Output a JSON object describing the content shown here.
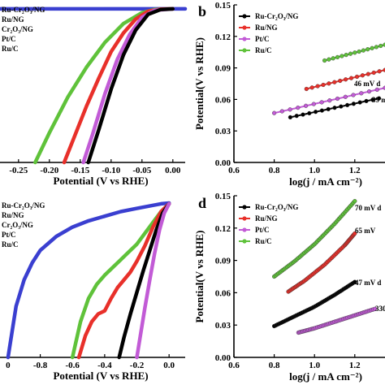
{
  "colors": {
    "ru_cr2o3_ng": "#000000",
    "ru_ng": "#e8302a",
    "cr2o3_ng": "#3a3fd0",
    "pt_c": "#c25bd6",
    "ru_c": "#5fc23a"
  },
  "chart_data": [
    {
      "panel": "a",
      "type": "line",
      "xlabel": "Potential (V vs RHE)",
      "ylabel": "",
      "xlim": [
        -0.28,
        0.02
      ],
      "xticks": [
        "-0.25",
        "-0.20",
        "-0.15",
        "-0.10",
        "-0.05",
        "0.00"
      ],
      "legend": [
        "Ru-Cr₂O₃/NG",
        "Ru/NG",
        "Cr₂O₃/NG",
        "Pt/C",
        "Ru/C"
      ],
      "legend_position": "top-left",
      "series": [
        {
          "name": "Cr₂O₃/NG",
          "color": "#3a3fd0",
          "x": [
            -0.28,
            -0.25,
            -0.2,
            -0.15,
            -0.1,
            -0.05,
            0.0,
            0.02
          ],
          "y": [
            0.985,
            0.985,
            0.985,
            0.985,
            0.985,
            0.985,
            0.985,
            0.985
          ]
        },
        {
          "name": "Ru/C",
          "color": "#5fc23a",
          "x": [
            -0.223,
            -0.2,
            -0.17,
            -0.14,
            -0.11,
            -0.08,
            -0.05,
            -0.03,
            0.0
          ],
          "y": [
            0.0,
            0.19,
            0.42,
            0.61,
            0.77,
            0.89,
            0.96,
            0.98,
            0.985
          ]
        },
        {
          "name": "Ru/NG",
          "color": "#e8302a",
          "x": [
            -0.176,
            -0.16,
            -0.14,
            -0.12,
            -0.1,
            -0.08,
            -0.06,
            -0.04,
            -0.02,
            0.0
          ],
          "y": [
            0.0,
            0.16,
            0.36,
            0.54,
            0.71,
            0.83,
            0.92,
            0.97,
            0.983,
            0.985
          ]
        },
        {
          "name": "Pt/C",
          "color": "#c25bd6",
          "x": [
            -0.145,
            -0.13,
            -0.11,
            -0.09,
            -0.07,
            -0.05,
            -0.03,
            0.0
          ],
          "y": [
            0.0,
            0.18,
            0.44,
            0.66,
            0.82,
            0.93,
            0.975,
            0.985
          ]
        },
        {
          "name": "Ru-Cr₂O₃/NG",
          "color": "#000000",
          "x": [
            -0.137,
            -0.12,
            -0.1,
            -0.08,
            -0.06,
            -0.04,
            -0.02,
            0.0
          ],
          "y": [
            0.0,
            0.21,
            0.47,
            0.69,
            0.85,
            0.95,
            0.98,
            0.985
          ]
        }
      ]
    },
    {
      "panel": "b",
      "type": "line",
      "xlabel": "log(j / mA cm⁻²)",
      "ylabel": "Potential(V vs RHE)",
      "xlim": [
        0.6,
        1.35
      ],
      "ylim": [
        0.0,
        0.15
      ],
      "xticks": [
        "0.6",
        "0.8",
        "1.0",
        "1.2"
      ],
      "yticks": [
        "0.00",
        "0.03",
        "0.06",
        "0.09",
        "0.12",
        "0.15"
      ],
      "legend": [
        "Ru-Cr₂O₃/NG",
        "Ru/NG",
        "Pt/C",
        "Ru/C"
      ],
      "legend_position": "top-left",
      "annotations": [
        "46 mV d",
        "39 m"
      ],
      "series": [
        {
          "name": "Ru/C",
          "color": "#5fc23a",
          "x": [
            1.05,
            1.35
          ],
          "y": [
            0.097,
            0.112
          ]
        },
        {
          "name": "Ru/NG",
          "color": "#e8302a",
          "x": [
            0.96,
            1.35
          ],
          "y": [
            0.07,
            0.088
          ]
        },
        {
          "name": "Pt/C",
          "color": "#c25bd6",
          "x": [
            0.8,
            1.35
          ],
          "y": [
            0.047,
            0.071
          ]
        },
        {
          "name": "Ru-Cr₂O₃/NG",
          "color": "#000000",
          "x": [
            0.88,
            1.32
          ],
          "y": [
            0.043,
            0.061
          ]
        }
      ]
    },
    {
      "panel": "c",
      "type": "line",
      "xlabel": "Potential (V vs RHE)",
      "ylabel": "",
      "xlim": [
        -1.05,
        0.1
      ],
      "xticks": [
        "0",
        "-0.8",
        "-0.6",
        "-0.4",
        "-0.2",
        "0.0"
      ],
      "legend": [
        "Ru-Cr₂O₃/NG",
        "Ru/NG",
        "Cr₂O₃/NG",
        "Pt/C",
        "Ru/C"
      ],
      "legend_position": "top-left",
      "series": [
        {
          "name": "Cr₂O₃/NG",
          "color": "#3a3fd0",
          "x": [
            -1.0,
            -0.95,
            -0.9,
            -0.85,
            -0.8,
            -0.7,
            -0.6,
            -0.5,
            -0.4,
            -0.3,
            -0.2,
            -0.1,
            -0.05,
            0.0
          ],
          "y": [
            0.0,
            0.33,
            0.5,
            0.61,
            0.69,
            0.78,
            0.84,
            0.88,
            0.91,
            0.94,
            0.96,
            0.98,
            0.99,
            0.995
          ]
        },
        {
          "name": "Ru/C",
          "color": "#5fc23a",
          "x": [
            -0.6,
            -0.55,
            -0.5,
            -0.45,
            -0.4,
            -0.35,
            -0.3,
            -0.25,
            -0.2,
            -0.15,
            -0.1,
            -0.05,
            0.0
          ],
          "y": [
            0.0,
            0.23,
            0.38,
            0.47,
            0.53,
            0.58,
            0.63,
            0.68,
            0.73,
            0.8,
            0.87,
            0.94,
            0.99
          ]
        },
        {
          "name": "Ru/NG",
          "color": "#e8302a",
          "x": [
            -0.56,
            -0.52,
            -0.48,
            -0.44,
            -0.4,
            -0.36,
            -0.32,
            -0.28,
            -0.24,
            -0.2,
            -0.15,
            -0.1,
            -0.05,
            0.0
          ],
          "y": [
            0.0,
            0.14,
            0.23,
            0.28,
            0.3,
            0.38,
            0.45,
            0.5,
            0.55,
            0.62,
            0.72,
            0.84,
            0.94,
            0.99
          ]
        },
        {
          "name": "Ru-Cr₂O₃/NG",
          "color": "#000000",
          "x": [
            -0.31,
            -0.28,
            -0.24,
            -0.2,
            -0.16,
            -0.12,
            -0.08,
            -0.04,
            0.0
          ],
          "y": [
            0.0,
            0.13,
            0.28,
            0.42,
            0.56,
            0.69,
            0.82,
            0.93,
            0.99
          ]
        },
        {
          "name": "Pt/C",
          "color": "#c25bd6",
          "x": [
            -0.2,
            -0.18,
            -0.15,
            -0.12,
            -0.09,
            -0.06,
            -0.03,
            0.0
          ],
          "y": [
            0.0,
            0.13,
            0.32,
            0.5,
            0.67,
            0.82,
            0.93,
            0.99
          ]
        }
      ]
    },
    {
      "panel": "d",
      "type": "line",
      "xlabel": "log(j / mA cm⁻²)",
      "ylabel": "Potential(V vs RHE)",
      "xlim": [
        0.6,
        1.35
      ],
      "ylim": [
        0.0,
        0.15
      ],
      "xticks": [
        "0.6",
        "0.8",
        "1.0",
        "1.2"
      ],
      "yticks": [
        "0.00",
        "0.03",
        "0.06",
        "0.09",
        "0.12",
        "0.15"
      ],
      "legend": [
        "Ru-Cr₂O₃/NG",
        "Ru/NG",
        "Pt/C",
        "Ru/C"
      ],
      "legend_position": "top-left",
      "annotations": [
        "70 mV d",
        "65 mV",
        "47 mV d",
        "330"
      ],
      "series": [
        {
          "name": "Ru/C",
          "color": "#5fc23a",
          "x": [
            0.8,
            0.9,
            1.0,
            1.1,
            1.2
          ],
          "y": [
            0.075,
            0.089,
            0.105,
            0.124,
            0.145
          ]
        },
        {
          "name": "Ru/NG",
          "color": "#e8302a",
          "x": [
            0.87,
            0.95,
            1.05,
            1.15,
            1.2
          ],
          "y": [
            0.061,
            0.071,
            0.086,
            0.104,
            0.115
          ]
        },
        {
          "name": "Ru-Cr₂O₃/NG",
          "color": "#000000",
          "x": [
            0.8,
            0.9,
            1.0,
            1.1,
            1.2
          ],
          "y": [
            0.029,
            0.038,
            0.047,
            0.058,
            0.07
          ]
        },
        {
          "name": "Pt/C",
          "color": "#c25bd6",
          "x": [
            0.92,
            1.0,
            1.1,
            1.2,
            1.3
          ],
          "y": [
            0.023,
            0.027,
            0.033,
            0.039,
            0.045
          ]
        }
      ]
    }
  ],
  "panels": {
    "b_label": "b",
    "d_label": "d"
  }
}
